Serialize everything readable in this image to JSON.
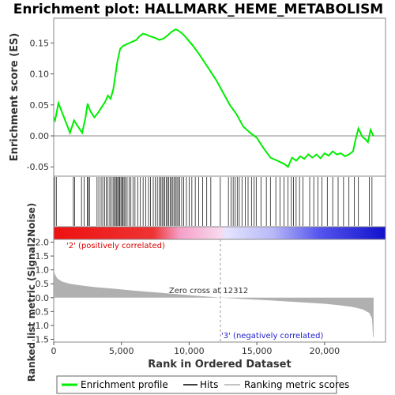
{
  "chart_data": {
    "type": "line",
    "title": "Enrichment plot: HALLMARK_HEME_METABOLISM",
    "x_axis": {
      "label": "Rank in Ordered Dataset",
      "range": [
        0,
        24500
      ],
      "ticks": [
        0,
        5000,
        10000,
        15000,
        20000
      ],
      "tick_labels": [
        "0",
        "5,000",
        "10,000",
        "15,000",
        "20,000"
      ]
    },
    "es_panel": {
      "ylabel": "Enrichment score (ES)",
      "ylim": [
        -0.065,
        0.19
      ],
      "ticks": [
        -0.05,
        0.0,
        0.05,
        0.1,
        0.15
      ],
      "tick_labels": [
        "-0.05",
        "0.00",
        "0.05",
        "0.10",
        "0.15"
      ],
      "series": [
        {
          "name": "Enrichment profile",
          "color": "#00ee00",
          "x": [
            0,
            100,
            350,
            1200,
            1500,
            1800,
            2100,
            2350,
            2500,
            2700,
            3000,
            3300,
            3500,
            3800,
            4000,
            4200,
            4400,
            4700,
            4900,
            5100,
            5400,
            5800,
            6100,
            6300,
            6600,
            6900,
            7200,
            7500,
            7800,
            8100,
            8400,
            8700,
            9000,
            9200,
            9500,
            9800,
            10300,
            10800,
            11400,
            12000,
            12500,
            13000,
            13500,
            14000,
            14500,
            15000,
            15200,
            15500,
            16000,
            16500,
            17000,
            17300,
            17600,
            17900,
            18200,
            18500,
            18800,
            19100,
            19400,
            19700,
            20000,
            20300,
            20600,
            20900,
            21200,
            21500,
            21800,
            22100,
            22300,
            22500,
            22800,
            23000,
            23200,
            23400,
            23600
          ],
          "y": [
            0.03,
            0.025,
            0.053,
            0.005,
            0.025,
            0.015,
            0.005,
            0.03,
            0.052,
            0.04,
            0.03,
            0.038,
            0.045,
            0.055,
            0.065,
            0.06,
            0.075,
            0.12,
            0.14,
            0.145,
            0.148,
            0.152,
            0.155,
            0.16,
            0.165,
            0.163,
            0.16,
            0.158,
            0.155,
            0.157,
            0.162,
            0.168,
            0.172,
            0.17,
            0.165,
            0.158,
            0.145,
            0.13,
            0.11,
            0.09,
            0.07,
            0.05,
            0.035,
            0.015,
            0.005,
            -0.003,
            -0.01,
            -0.02,
            -0.035,
            -0.04,
            -0.045,
            -0.05,
            -0.035,
            -0.04,
            -0.033,
            -0.037,
            -0.03,
            -0.035,
            -0.03,
            -0.036,
            -0.028,
            -0.032,
            -0.025,
            -0.03,
            -0.028,
            -0.033,
            -0.03,
            -0.025,
            -0.005,
            0.012,
            -0.002,
            -0.005,
            -0.01,
            0.01,
            0.0
          ]
        }
      ]
    },
    "hits_panel": {
      "legend_name": "Hits",
      "hit_positions": [
        60,
        190,
        1450,
        1550,
        2050,
        2250,
        2480,
        2560,
        2640,
        3200,
        3330,
        3500,
        3620,
        3750,
        3880,
        4010,
        4140,
        4250,
        4380,
        4470,
        4560,
        4650,
        4720,
        4810,
        4880,
        4960,
        5040,
        5120,
        5200,
        5300,
        5420,
        5560,
        5700,
        5850,
        6000,
        6200,
        6400,
        6600,
        6800,
        7000,
        7150,
        7350,
        7500,
        7650,
        7800,
        7900,
        8000,
        8100,
        8200,
        8300,
        8400,
        8500,
        8600,
        8700,
        8800,
        8900,
        9000,
        9100,
        9200,
        9300,
        9450,
        9600,
        9800,
        10000,
        10200,
        10450,
        10700,
        11000,
        11300,
        11600,
        12300,
        12900,
        13100,
        13250,
        13400,
        13550,
        13700,
        13900,
        14150,
        14350,
        14600,
        14800,
        14950,
        15300,
        15700,
        16000,
        16400,
        16700,
        17000,
        17300,
        17550,
        17700,
        17900,
        18150,
        18400,
        18900,
        19200,
        19500,
        19800,
        20200,
        20600,
        21000,
        21400,
        21800,
        22200,
        22500,
        23300,
        23500
      ]
    },
    "ranking_colorbar": {
      "label_positive": "'2' (positively correlated)",
      "label_negative": "'3' (negatively correlated)",
      "positive_color": "#ee1111",
      "negative_color": "#1111cc"
    },
    "metric_panel": {
      "ylabel": "Ranked list metric (Signal2Noise)",
      "legend_name": "Ranking metric scores",
      "ylim": [
        -1.6,
        2.1
      ],
      "ticks": [
        -1.5,
        -1.0,
        -0.5,
        0.0,
        0.5,
        1.0,
        1.5,
        2.0
      ],
      "tick_labels": [
        "-1.5",
        "-1.0",
        "-0.5",
        "0.0",
        "0.5",
        "1.0",
        "1.5",
        "2.0"
      ],
      "zero_cross_label": "Zero cross at 12312",
      "zero_cross_rank": 12312,
      "x": [
        0,
        80,
        250,
        600,
        1200,
        2000,
        3000,
        4500,
        6000,
        8000,
        10000,
        12312,
        14000,
        16000,
        18000,
        20000,
        21000,
        22000,
        22800,
        23300,
        23500,
        23580,
        23620
      ],
      "y": [
        1.0,
        0.85,
        0.7,
        0.58,
        0.5,
        0.44,
        0.38,
        0.32,
        0.25,
        0.17,
        0.09,
        0.0,
        -0.05,
        -0.1,
        -0.16,
        -0.22,
        -0.27,
        -0.33,
        -0.42,
        -0.55,
        -0.75,
        -1.4,
        -1.45
      ],
      "fill_color": "#b0b0b0"
    },
    "legend": {
      "placement": "bottom",
      "items": [
        {
          "label": "Enrichment profile",
          "color": "#00ee00"
        },
        {
          "label": "Hits",
          "color": "#000000"
        },
        {
          "label": "Ranking metric scores",
          "color": "#b0b0b0"
        }
      ]
    }
  }
}
